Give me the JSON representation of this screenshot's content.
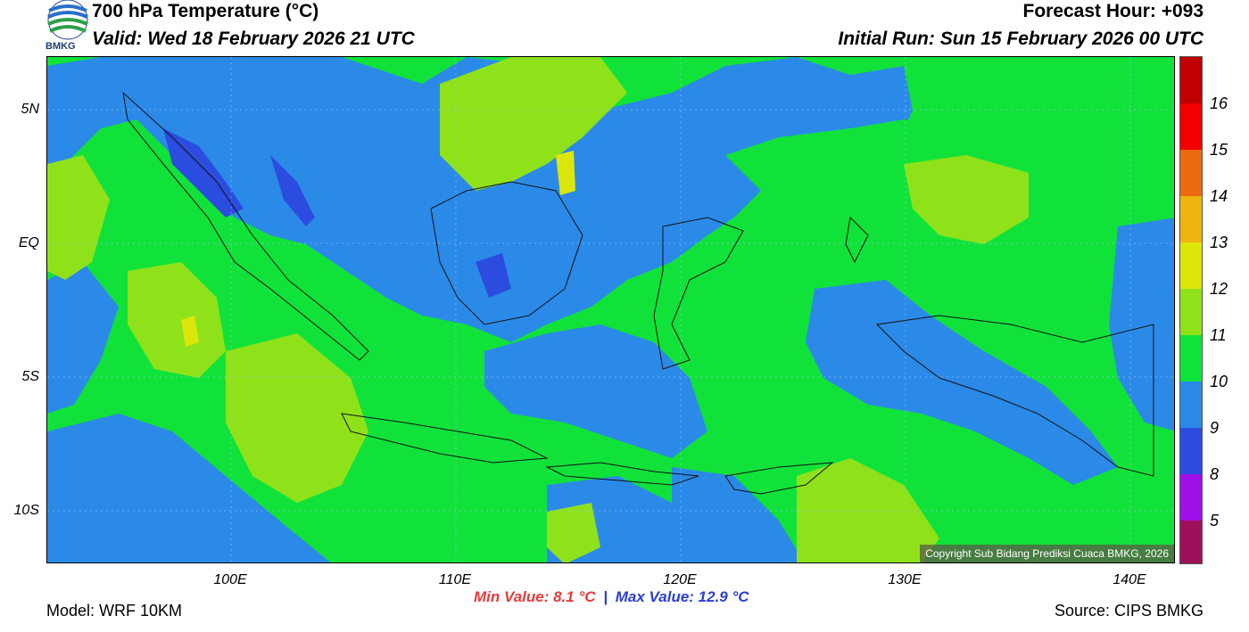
{
  "header": {
    "title": "700 hPa Temperature (°C)",
    "valid": "Valid: Wed 18 February 2026 21 UTC",
    "forecast_hour": "Forecast Hour: +093",
    "initial_run": "Initial Run: Sun 15 February 2026 00 UTC",
    "logo_text": "BMKG"
  },
  "map": {
    "y_axis_labels": [
      "5N",
      "EQ",
      "5S",
      "10S"
    ],
    "x_axis_labels": [
      "100E",
      "110E",
      "120E",
      "130E",
      "140E"
    ],
    "copyright": "Copyright Sub Bidang Prediksi Cuaca BMKG, 2026"
  },
  "colorbar": {
    "labels": [
      "16",
      "15",
      "14",
      "13",
      "12",
      "11",
      "10",
      "9",
      "8",
      "5"
    ],
    "colors": [
      "#c00000",
      "#e01010",
      "#f20000",
      "#ec6a10",
      "#eeb410",
      "#dde60a",
      "#8fe21a",
      "#11e23a",
      "#2b8ae8",
      "#2b4cde",
      "#a010e8",
      "#a0105a"
    ]
  },
  "footer": {
    "model": "Model: WRF 10KM",
    "source": "Source: CIPS BMKG",
    "min_value": "Min Value: 8.1 °C",
    "separator": "|",
    "max_value": "Max Value: 12.9 °C"
  }
}
